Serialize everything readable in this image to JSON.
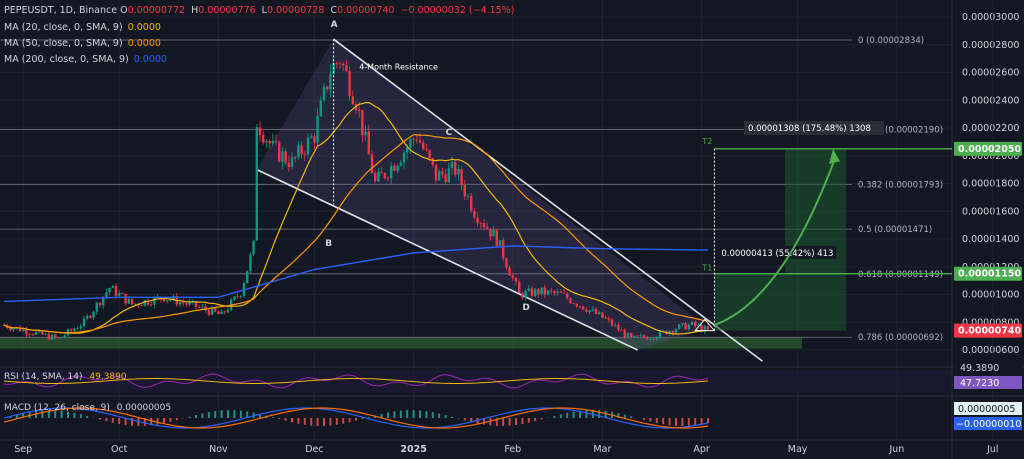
{
  "header": {
    "symbol": "PEPEUSDT, 1D, Binance",
    "ohlc": [
      {
        "label": "O",
        "value": "0.00000772"
      },
      {
        "label": "H",
        "value": "0.00000776"
      },
      {
        "label": "L",
        "value": "0.00000728"
      },
      {
        "label": "C",
        "value": "0.00000740"
      }
    ],
    "change": "−0.00000032 (−4.15%)",
    "ma_legends": [
      {
        "label": "MA (20, close, 0, SMA, 9)",
        "value": "0.0000",
        "color": "#f0b90b"
      },
      {
        "label": "MA (50, close, 0, SMA, 9)",
        "value": "0.0000",
        "color": "#ff9800"
      },
      {
        "label": "MA (200, close, 0, SMA, 9)",
        "value": "0.0000",
        "color": "#2962ff"
      }
    ]
  },
  "chart_data": {
    "type": "candlestick",
    "x_ticks": [
      "Sep",
      "Oct",
      "Nov",
      "Dec",
      "2025",
      "Feb",
      "Mar",
      "Apr",
      "May",
      "Jun",
      "Jul"
    ],
    "y_ticks": [
      "0.00003000",
      "0.00002800",
      "0.00002600",
      "0.00002400",
      "0.00002200",
      "0.00002000",
      "0.00001800",
      "0.00001600",
      "0.00001400",
      "0.00001200",
      "0.00001000",
      "0.00000800",
      "0.00000600"
    ],
    "ylim": [
      4.8e-06,
      3.1e-05
    ],
    "price_keypoints": [
      [
        "Aug 26",
        7.8e-06
      ],
      [
        "Sep 5",
        7.2e-06
      ],
      [
        "Sep 12",
        6.8e-06
      ],
      [
        "Sep 20",
        8e-06
      ],
      [
        "Sep 28",
        1.05e-05
      ],
      [
        "Oct 5",
        9.3e-06
      ],
      [
        "Oct 15",
        9.8e-06
      ],
      [
        "Oct 24",
        9.2e-06
      ],
      [
        "Nov 2",
        8.5e-06
      ],
      [
        "Nov 8",
        1.02e-05
      ],
      [
        "Nov 12",
        1.35e-05
      ],
      [
        "Nov 13",
        2.25e-05
      ],
      [
        "Nov 18",
        2.05e-05
      ],
      [
        "Nov 24",
        1.95e-05
      ],
      [
        "Dec 1",
        2.15e-05
      ],
      [
        "Dec 6",
        2.62e-05
      ],
      [
        "Dec 9",
        2.7e-05
      ],
      [
        "Dec 14",
        2.4e-05
      ],
      [
        "Dec 20",
        1.8e-05
      ],
      [
        "Dec 26",
        1.95e-05
      ],
      [
        "Jan 2",
        2.15e-05
      ],
      [
        "Jan 8",
        1.85e-05
      ],
      [
        "Jan 14",
        1.9e-05
      ],
      [
        "Jan 20",
        1.6e-05
      ],
      [
        "Jan 27",
        1.4e-05
      ],
      [
        "Feb 3",
        1e-05
      ],
      [
        "Feb 9",
        1.02e-05
      ],
      [
        "Feb 16",
        1e-05
      ],
      [
        "Feb 24",
        9e-06
      ],
      [
        "Mar 2",
        8.2e-06
      ],
      [
        "Mar 10",
        6.8e-06
      ],
      [
        "Mar 17",
        7e-06
      ],
      [
        "Mar 24",
        7.6e-06
      ],
      [
        "Mar 29",
        7.8e-06
      ],
      [
        "Apr 3",
        7.4e-06
      ]
    ],
    "ma_200_keypoints": [
      [
        "Aug 26",
        9.5e-06
      ],
      [
        "Oct 1",
        9.8e-06
      ],
      [
        "Nov 1",
        9.8e-06
      ],
      [
        "Dec 1",
        1.18e-05
      ],
      [
        "Jan 1",
        1.3e-05
      ],
      [
        "Feb 1",
        1.35e-05
      ],
      [
        "Mar 1",
        1.33e-05
      ],
      [
        "Apr 3",
        1.32e-05
      ]
    ],
    "fib_levels": [
      {
        "label": "0 (0.00002834)",
        "value": 2.834e-05
      },
      {
        "label": "0.236 (0.00002190)",
        "value": 2.19e-05
      },
      {
        "label": "0.382 (0.00001793)",
        "value": 1.793e-05
      },
      {
        "label": "0.5 (0.00001471)",
        "value": 1.471e-05
      },
      {
        "label": "0.618 (0.00001149)",
        "value": 1.149e-05
      },
      {
        "label": "0.786 (0.00000692)",
        "value": 6.92e-06
      }
    ],
    "annotations": {
      "points": [
        "A",
        "B",
        "C",
        "D"
      ],
      "resistance": "4-Month Resistance",
      "t1_label": "T1",
      "t2_label": "T2",
      "measure_small": "0.00000413 (55.42%) 413",
      "measure_big": "0.00001308 (175.48%) 1308"
    },
    "price_tags": [
      {
        "text": "0.00002050",
        "value": 2.05e-05,
        "color": "#4caf50"
      },
      {
        "text": "0.00001150",
        "value": 1.15e-05,
        "color": "#4caf50"
      },
      {
        "text": "0.00000740",
        "value": 7.4e-06,
        "color": "#f23645"
      }
    ],
    "rsi": {
      "label": "RSI (14, SMA, 14)",
      "value_a": "49.3890",
      "scale_a": "49.3890",
      "scale_b": "47.7230"
    },
    "macd": {
      "label": "MACD (12, 26, close, 9)",
      "value_a": "0.00000005",
      "scale_a": "0.00000005",
      "scale_b": "−0.00000010"
    }
  }
}
